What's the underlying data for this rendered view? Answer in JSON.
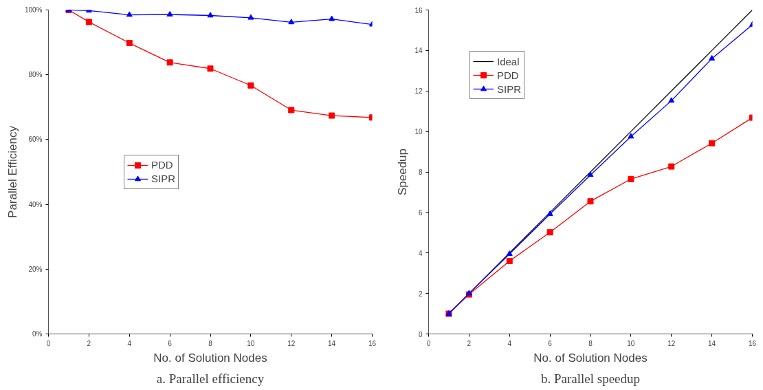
{
  "chart_data": [
    {
      "type": "line",
      "xlabel": "No. of Solution Nodes",
      "ylabel": "Parallel Efficiency",
      "annotations": [
        "a. Parallel efficiency"
      ],
      "x": [
        1,
        2,
        4,
        6,
        8,
        10,
        12,
        14,
        16
      ],
      "xlim": [
        0,
        16
      ],
      "xticks": [
        0,
        2,
        4,
        6,
        8,
        10,
        12,
        14,
        16
      ],
      "ylim": [
        0,
        100
      ],
      "yticks": [
        {
          "value": 0,
          "label": "0%"
        },
        {
          "value": 20,
          "label": "20%"
        },
        {
          "value": 40,
          "label": "40%"
        },
        {
          "value": 60,
          "label": "60%"
        },
        {
          "value": 80,
          "label": "80%"
        },
        {
          "value": 100,
          "label": "100%"
        }
      ],
      "grid": false,
      "legend": "center left",
      "line_style": "solid",
      "series": [
        {
          "name": "PDD",
          "color": "#ff0000",
          "marker": "square",
          "values": [
            100,
            96.3,
            89.8,
            83.8,
            81.9,
            76.7,
            69.1,
            67.4,
            66.8
          ]
        },
        {
          "name": "SIPR",
          "color": "#0000ff",
          "marker": "triangle",
          "values": [
            100,
            99.8,
            98.5,
            98.6,
            98.3,
            97.6,
            96.2,
            97.2,
            95.5
          ]
        }
      ]
    },
    {
      "type": "line",
      "xlabel": "No. of Solution Nodes",
      "ylabel": "Speedup",
      "annotations": [
        "b. Parallel speedup"
      ],
      "x": [
        1,
        2,
        4,
        6,
        8,
        10,
        12,
        14,
        16
      ],
      "xlim": [
        0,
        16
      ],
      "xticks": [
        0,
        2,
        4,
        6,
        8,
        10,
        12,
        14,
        16
      ],
      "ylim": [
        0,
        16
      ],
      "yticks": [
        0,
        2,
        4,
        6,
        8,
        10,
        12,
        14,
        16
      ],
      "grid": false,
      "legend": "top left",
      "line_style": "solid",
      "series": [
        {
          "name": "Ideal",
          "color": "#000000",
          "marker": "none",
          "values": [
            1,
            2,
            4,
            6,
            8,
            10,
            12,
            14,
            16
          ]
        },
        {
          "name": "PDD",
          "color": "#ff0000",
          "marker": "square",
          "values": [
            1,
            1.95,
            3.6,
            5.02,
            6.55,
            7.65,
            8.27,
            9.42,
            10.68
          ]
        },
        {
          "name": "SIPR",
          "color": "#0000ff",
          "marker": "triangle",
          "values": [
            1,
            2,
            3.95,
            5.92,
            7.85,
            9.75,
            11.52,
            13.6,
            15.27
          ]
        }
      ]
    }
  ]
}
